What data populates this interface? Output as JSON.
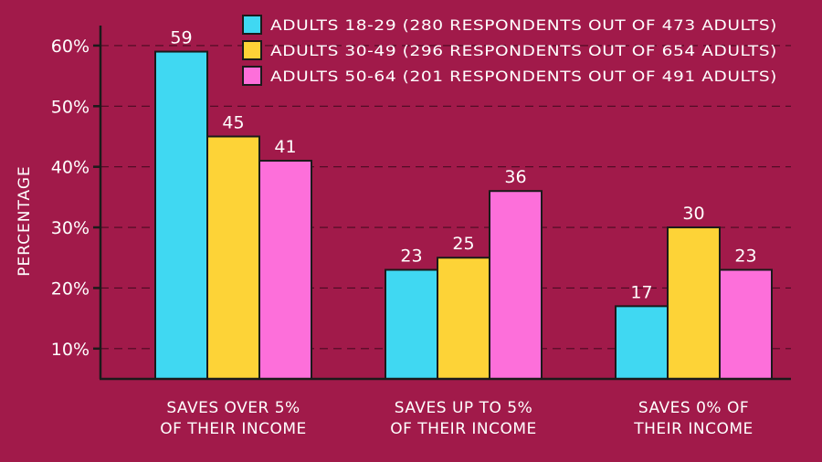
{
  "chart_data": {
    "type": "bar",
    "ylabel": "PERCENTAGE",
    "xlabel": "",
    "title": "",
    "ylim": [
      5,
      63
    ],
    "yticks": [
      10,
      20,
      30,
      40,
      50,
      60
    ],
    "ytick_labels": [
      "10%",
      "20%",
      "30%",
      "40%",
      "50%",
      "60%"
    ],
    "grid": true,
    "legend_position": "top-right",
    "categories": [
      [
        "SAVES OVER 5%",
        "OF THEIR INCOME"
      ],
      [
        "SAVES UP TO 5%",
        "OF THEIR INCOME"
      ],
      [
        "SAVES 0% OF",
        "THEIR INCOME"
      ]
    ],
    "series": [
      {
        "name": "ADULTS 18-29 (280 RESPONDENTS OUT OF 473 ADULTS)",
        "color": "#40d8f2",
        "values": [
          59,
          23,
          17
        ]
      },
      {
        "name": "ADULTS 30-49 (296 RESPONDENTS OUT OF 654 ADULTS)",
        "color": "#fdd337",
        "values": [
          45,
          25,
          30
        ]
      },
      {
        "name": "ADULTS 50-64 (201 RESPONDENTS OUT OF 491 ADULTS)",
        "color": "#fd6fda",
        "values": [
          41,
          36,
          23
        ]
      }
    ]
  }
}
